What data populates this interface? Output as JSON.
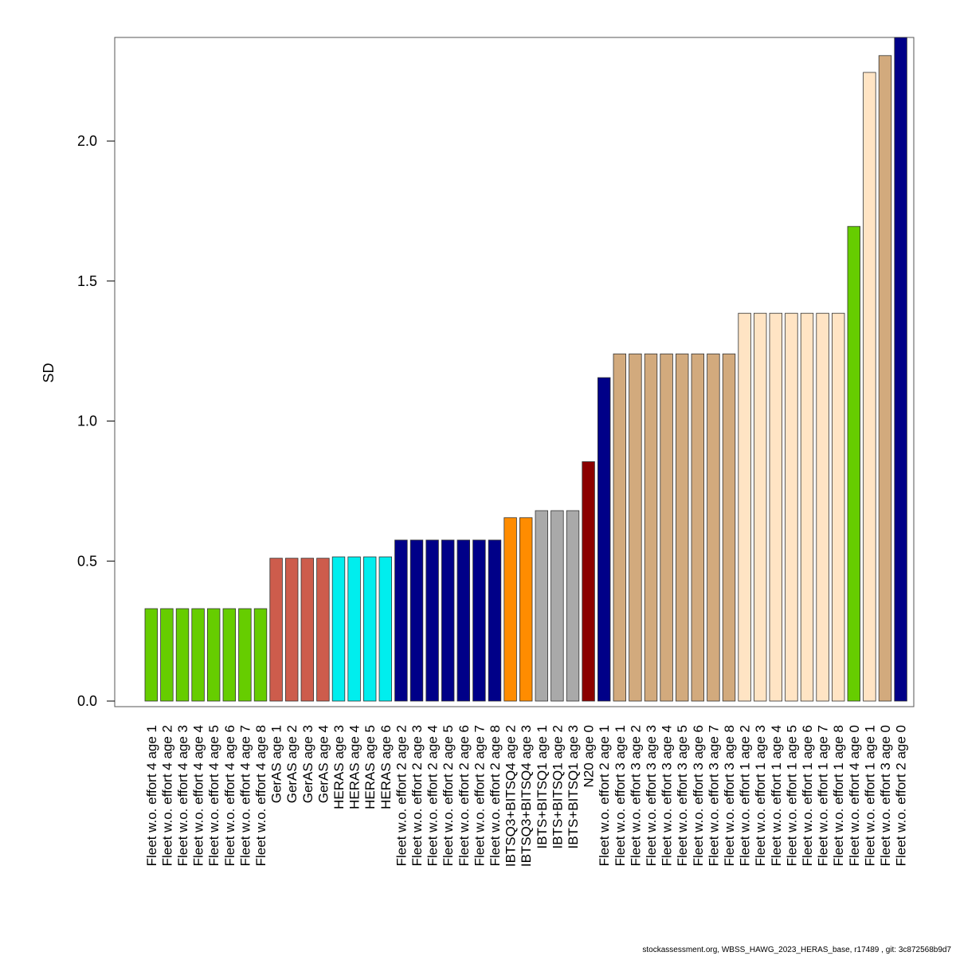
{
  "chart_data": {
    "type": "bar",
    "ylabel": "SD",
    "xlabel": "",
    "ylim": [
      0,
      2.37
    ],
    "yticks": [
      "0.0",
      "0.5",
      "1.0",
      "1.5",
      "2.0"
    ],
    "ytick_values": [
      0,
      0.5,
      1.0,
      1.5,
      2.0
    ],
    "categories": [
      "Fleet w.o. effort 4 age 1",
      "Fleet w.o. effort 4 age 2",
      "Fleet w.o. effort 4 age 3",
      "Fleet w.o. effort 4 age 4",
      "Fleet w.o. effort 4 age 5",
      "Fleet w.o. effort 4 age 6",
      "Fleet w.o. effort 4 age 7",
      "Fleet w.o. effort 4 age 8",
      "GerAS age 1",
      "GerAS age 2",
      "GerAS age 3",
      "GerAS age 4",
      "HERAS age 3",
      "HERAS age 4",
      "HERAS age 5",
      "HERAS age 6",
      "Fleet w.o. effort 2 age 2",
      "Fleet w.o. effort 2 age 3",
      "Fleet w.o. effort 2 age 4",
      "Fleet w.o. effort 2 age 5",
      "Fleet w.o. effort 2 age 6",
      "Fleet w.o. effort 2 age 7",
      "Fleet w.o. effort 2 age 8",
      "IBTSQ3+BITSQ4 age 2",
      "IBTSQ3+BITSQ4 age 3",
      "IBTS+BITSQ1 age 1",
      "IBTS+BITSQ1 age 2",
      "IBTS+BITSQ1 age 3",
      "N20 age 0",
      "Fleet w.o. effort 2 age 1",
      "Fleet w.o. effort 3 age 1",
      "Fleet w.o. effort 3 age 2",
      "Fleet w.o. effort 3 age 3",
      "Fleet w.o. effort 3 age 4",
      "Fleet w.o. effort 3 age 5",
      "Fleet w.o. effort 3 age 6",
      "Fleet w.o. effort 3 age 7",
      "Fleet w.o. effort 3 age 8",
      "Fleet w.o. effort 1 age 2",
      "Fleet w.o. effort 1 age 3",
      "Fleet w.o. effort 1 age 4",
      "Fleet w.o. effort 1 age 5",
      "Fleet w.o. effort 1 age 6",
      "Fleet w.o. effort 1 age 7",
      "Fleet w.o. effort 1 age 8",
      "Fleet w.o. effort 4 age 0",
      "Fleet w.o. effort 1 age 1",
      "Fleet w.o. effort 3 age 0",
      "Fleet w.o. effort 2 age 0"
    ],
    "values": [
      0.33,
      0.33,
      0.33,
      0.33,
      0.33,
      0.33,
      0.33,
      0.33,
      0.51,
      0.51,
      0.51,
      0.51,
      0.515,
      0.515,
      0.515,
      0.515,
      0.575,
      0.575,
      0.575,
      0.575,
      0.575,
      0.575,
      0.575,
      0.655,
      0.655,
      0.68,
      0.68,
      0.68,
      0.855,
      1.155,
      1.24,
      1.24,
      1.24,
      1.24,
      1.24,
      1.24,
      1.24,
      1.24,
      1.385,
      1.385,
      1.385,
      1.385,
      1.385,
      1.385,
      1.385,
      1.695,
      2.245,
      2.305,
      2.38
    ],
    "colors": [
      "#66CD00",
      "#66CD00",
      "#66CD00",
      "#66CD00",
      "#66CD00",
      "#66CD00",
      "#66CD00",
      "#66CD00",
      "#CD5C4C",
      "#CD5C4C",
      "#CD5C4C",
      "#CD5C4C",
      "#00EEEE",
      "#00EEEE",
      "#00EEEE",
      "#00EEEE",
      "#000088",
      "#000088",
      "#000088",
      "#000088",
      "#000088",
      "#000088",
      "#000088",
      "#FF8C00",
      "#FF8C00",
      "#A9A9A9",
      "#A9A9A9",
      "#A9A9A9",
      "#8B0000",
      "#000088",
      "#D2AA7D",
      "#D2AA7D",
      "#D2AA7D",
      "#D2AA7D",
      "#D2AA7D",
      "#D2AA7D",
      "#D2AA7D",
      "#D2AA7D",
      "#FFE4C4",
      "#FFE4C4",
      "#FFE4C4",
      "#FFE4C4",
      "#FFE4C4",
      "#FFE4C4",
      "#FFE4C4",
      "#66CD00",
      "#FFE4C4",
      "#D2AA7D",
      "#000088"
    ]
  },
  "footer": {
    "text": "stockassessment.org, WBSS_HAWG_2023_HERAS_base, r17489 , git: 3c872568b9d7"
  }
}
